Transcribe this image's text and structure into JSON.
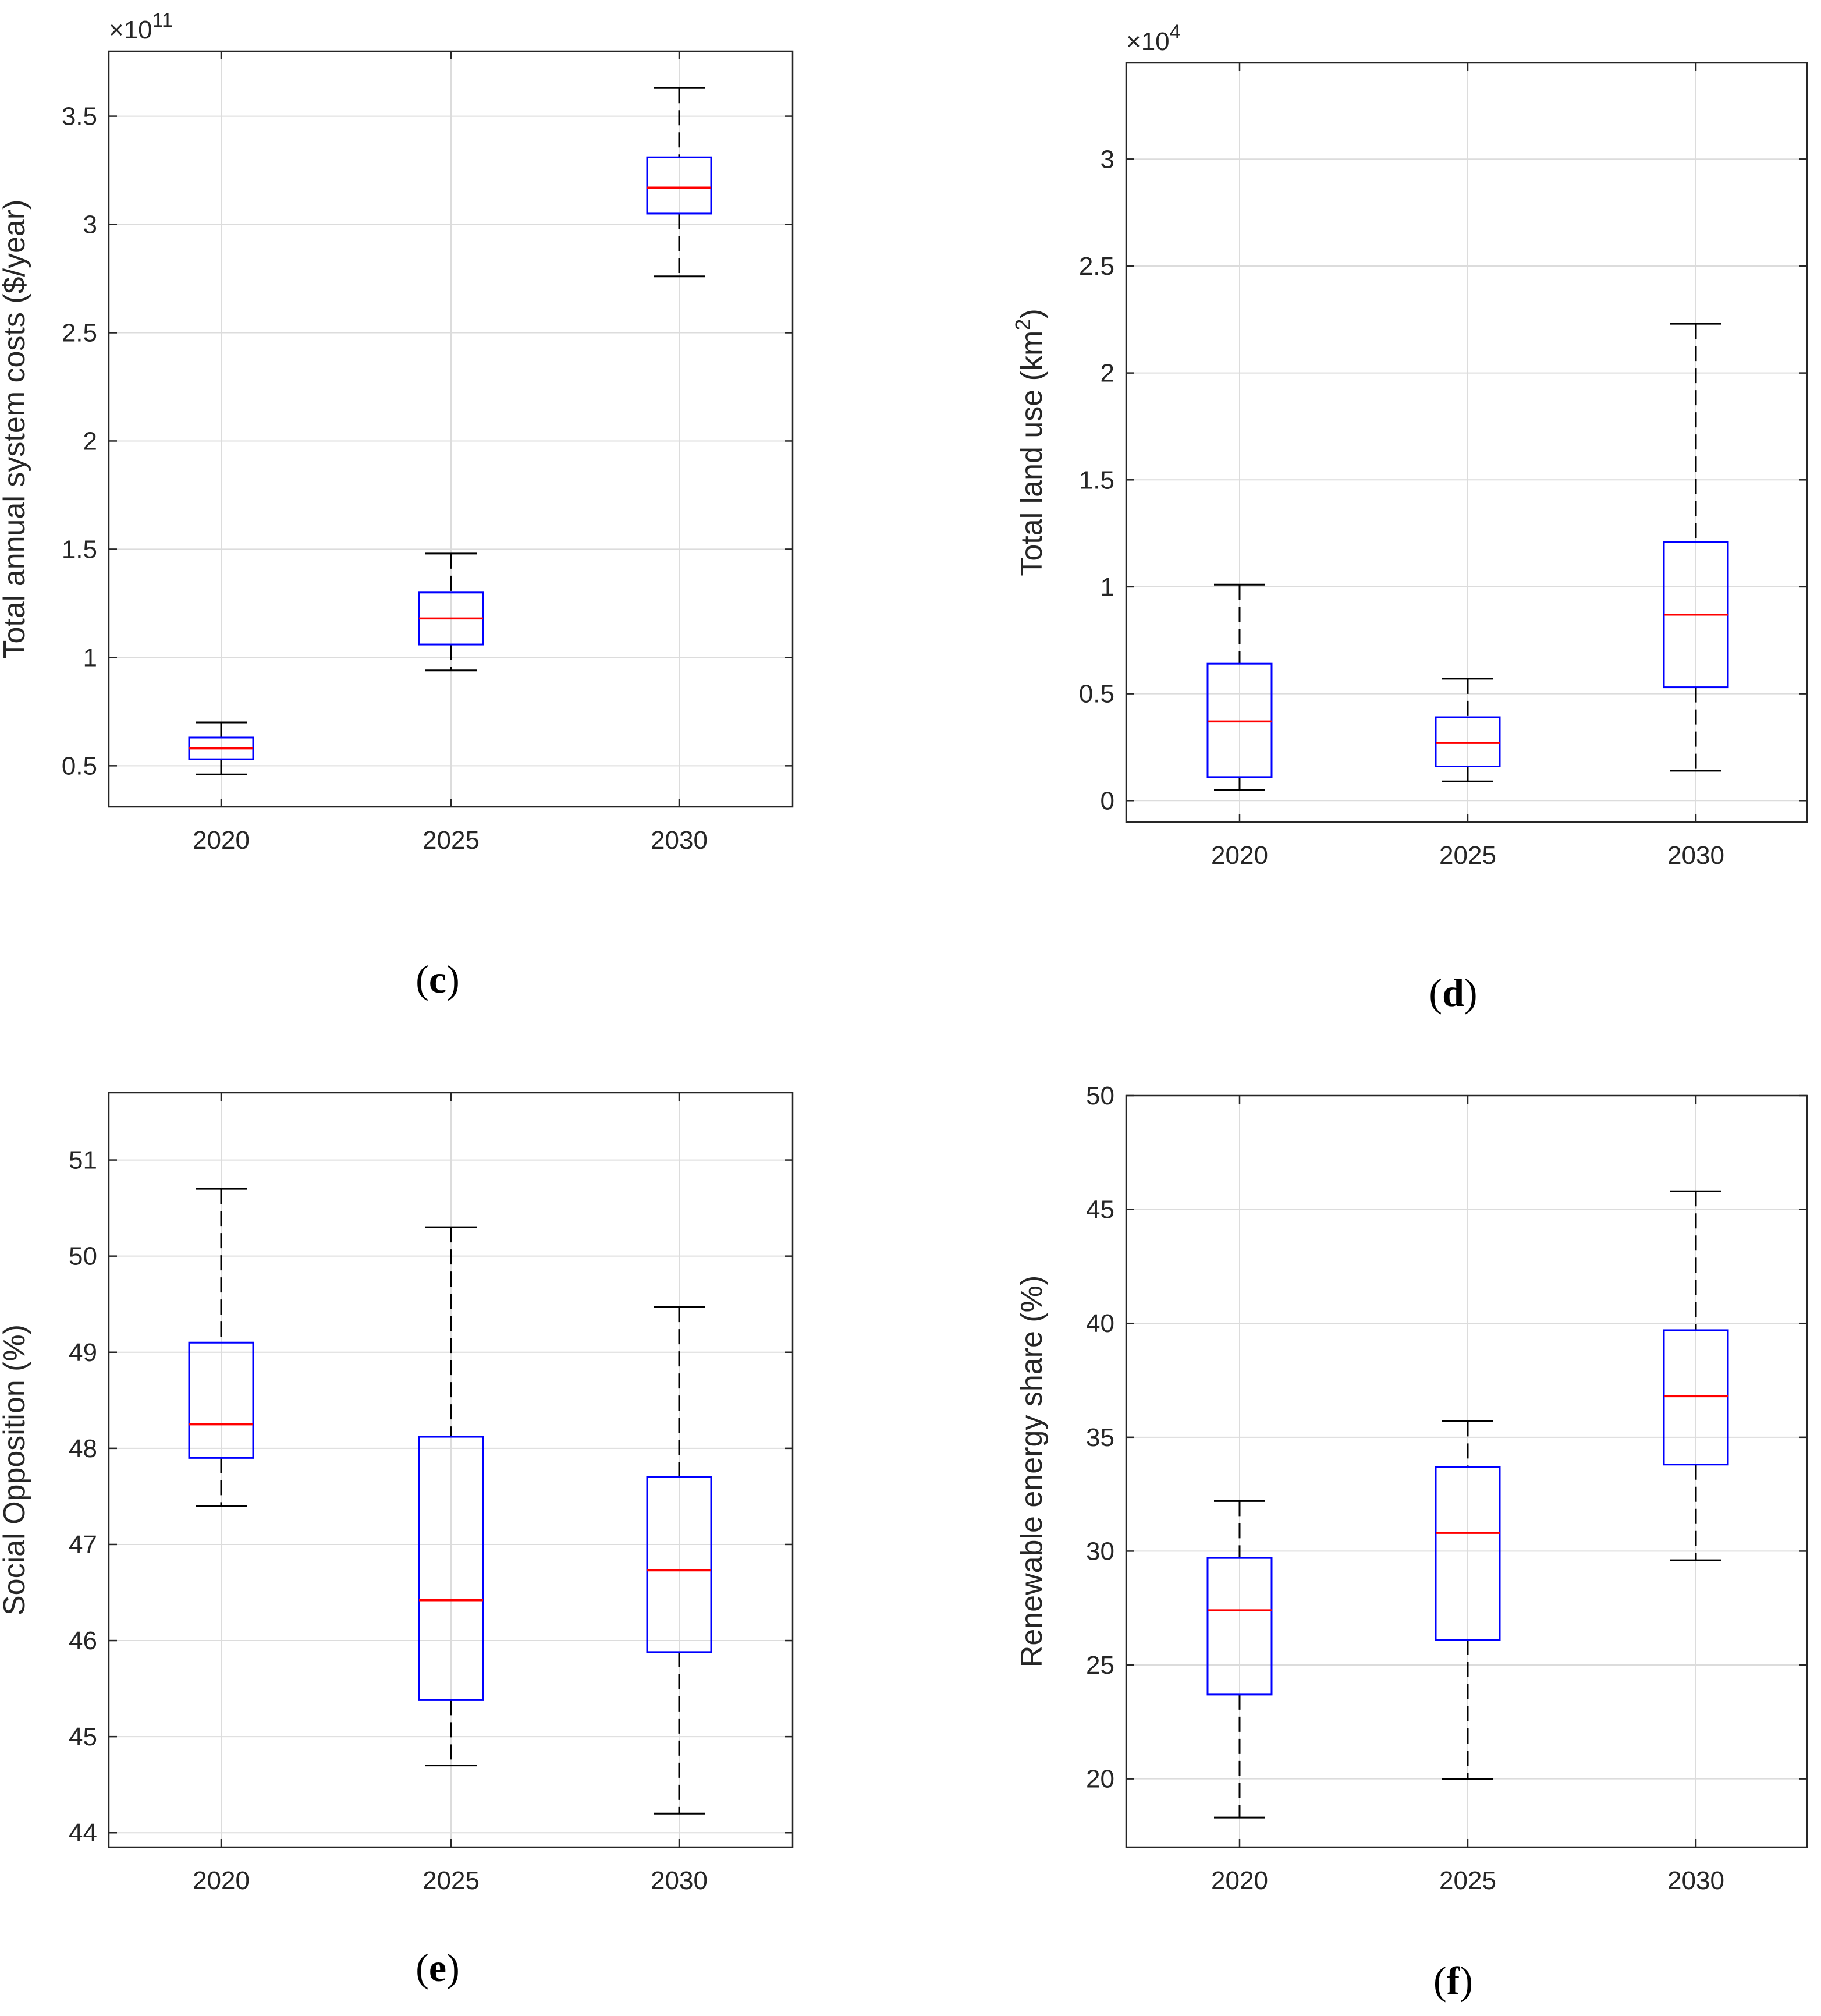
{
  "chart_data": [
    {
      "id": "c",
      "type": "box",
      "caption_letter": "c",
      "ylabel": "Total annual system costs ($/year)",
      "multiplier_base": "×10",
      "multiplier_exp": "11",
      "categories": [
        "2020",
        "2025",
        "2030"
      ],
      "ylim": [
        0.31,
        3.8
      ],
      "yticks": [
        0.5,
        1,
        1.5,
        2,
        2.5,
        3,
        3.5
      ],
      "ytick_labels": [
        "0.5",
        "1",
        "1.5",
        "2",
        "2.5",
        "3",
        "3.5"
      ],
      "boxes": [
        {
          "min": 0.46,
          "q1": 0.53,
          "median": 0.58,
          "q3": 0.63,
          "max": 0.7
        },
        {
          "min": 0.94,
          "q1": 1.06,
          "median": 1.18,
          "q3": 1.3,
          "max": 1.48
        },
        {
          "min": 2.76,
          "q1": 3.05,
          "median": 3.17,
          "q3": 3.31,
          "max": 3.63
        }
      ]
    },
    {
      "id": "d",
      "type": "box",
      "caption_letter": "d",
      "ylabel_main": "Total land use (km",
      "ylabel_sup": "2",
      "ylabel_end": ")",
      "multiplier_base": "×10",
      "multiplier_exp": "4",
      "categories": [
        "2020",
        "2025",
        "2030"
      ],
      "ylim": [
        -0.1,
        3.45
      ],
      "yticks": [
        0,
        0.5,
        1,
        1.5,
        2,
        2.5,
        3
      ],
      "ytick_labels": [
        "0",
        "0.5",
        "1",
        "1.5",
        "2",
        "2.5",
        "3"
      ],
      "boxes": [
        {
          "min": 0.05,
          "q1": 0.11,
          "median": 0.37,
          "q3": 0.64,
          "max": 1.01
        },
        {
          "min": 0.09,
          "q1": 0.16,
          "median": 0.27,
          "q3": 0.39,
          "max": 0.57
        },
        {
          "min": 0.14,
          "q1": 0.53,
          "median": 0.87,
          "q3": 1.21,
          "max": 2.23
        }
      ]
    },
    {
      "id": "e",
      "type": "box",
      "caption_letter": "e",
      "ylabel": "Social Opposition (%)",
      "categories": [
        "2020",
        "2025",
        "2030"
      ],
      "ylim": [
        43.85,
        51.7
      ],
      "yticks": [
        44,
        45,
        46,
        47,
        48,
        49,
        50,
        51
      ],
      "ytick_labels": [
        "44",
        "45",
        "46",
        "47",
        "48",
        "49",
        "50",
        "51"
      ],
      "boxes": [
        {
          "min": 47.4,
          "q1": 47.9,
          "median": 48.25,
          "q3": 49.1,
          "max": 50.7
        },
        {
          "min": 44.7,
          "q1": 45.38,
          "median": 46.42,
          "q3": 48.12,
          "max": 50.3
        },
        {
          "min": 44.2,
          "q1": 45.88,
          "median": 46.73,
          "q3": 47.7,
          "max": 49.47
        }
      ]
    },
    {
      "id": "f",
      "type": "box",
      "caption_letter": "f",
      "ylabel": "Renewable energy share (%)",
      "categories": [
        "2020",
        "2025",
        "2030"
      ],
      "ylim": [
        17,
        50
      ],
      "yticks": [
        20,
        25,
        30,
        35,
        40,
        45,
        50
      ],
      "ytick_labels": [
        "20",
        "25",
        "30",
        "35",
        "40",
        "45",
        "50"
      ],
      "boxes": [
        {
          "min": 18.3,
          "q1": 23.7,
          "median": 27.4,
          "q3": 29.7,
          "max": 32.2
        },
        {
          "min": 20.0,
          "q1": 26.1,
          "median": 30.8,
          "q3": 33.7,
          "max": 35.7
        },
        {
          "min": 29.6,
          "q1": 33.8,
          "median": 36.8,
          "q3": 39.7,
          "max": 45.8
        }
      ]
    }
  ]
}
